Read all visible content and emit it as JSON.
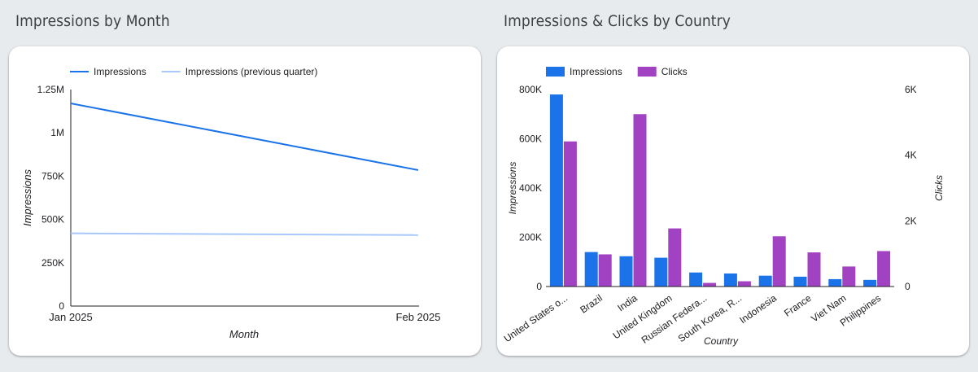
{
  "sections": {
    "left_title": "Impressions by Month",
    "right_title": "Impressions & Clicks by Country"
  },
  "chart_data": [
    {
      "type": "line",
      "title": "Impressions by Month",
      "xlabel": "Month",
      "ylabel": "Impressions",
      "x": [
        "Jan 2025",
        "Feb 2025"
      ],
      "yticks": [
        "0",
        "250K",
        "500K",
        "750K",
        "1M",
        "1.25M"
      ],
      "ylim": [
        0,
        1250000
      ],
      "series": [
        {
          "name": "Impressions",
          "values": [
            1170000,
            785000
          ],
          "color": "#1a73e8"
        },
        {
          "name": "Impressions (previous quarter)",
          "values": [
            420000,
            410000
          ],
          "color": "#a8c7fa"
        }
      ],
      "legend": "top-left",
      "grid": false
    },
    {
      "type": "bar",
      "title": "Impressions & Clicks by Country",
      "xlabel": "Country",
      "ylabel": "Impressions",
      "y2label": "Clicks",
      "categories": [
        "United States o...",
        "Brazil",
        "India",
        "United Kingdom",
        "Russian Federa...",
        "South Korea, R...",
        "Indonesia",
        "France",
        "Viet Nam",
        "Philippines"
      ],
      "yticks": [
        "0",
        "200K",
        "400K",
        "600K",
        "800K"
      ],
      "y2ticks": [
        "0",
        "2K",
        "4K",
        "6K"
      ],
      "ylim": [
        0,
        800000
      ],
      "y2lim": [
        0,
        6000
      ],
      "series": [
        {
          "name": "Impressions",
          "axis": "left",
          "color": "#1a73e8",
          "values": [
            780000,
            140000,
            123000,
            117000,
            57000,
            53000,
            44000,
            40000,
            30000,
            27000
          ]
        },
        {
          "name": "Clicks",
          "axis": "right",
          "color": "#a142c2",
          "values": [
            4420,
            980,
            5250,
            1770,
            110,
            160,
            1530,
            1040,
            610,
            1080
          ]
        }
      ],
      "legend": "top-left",
      "grid": false
    }
  ]
}
